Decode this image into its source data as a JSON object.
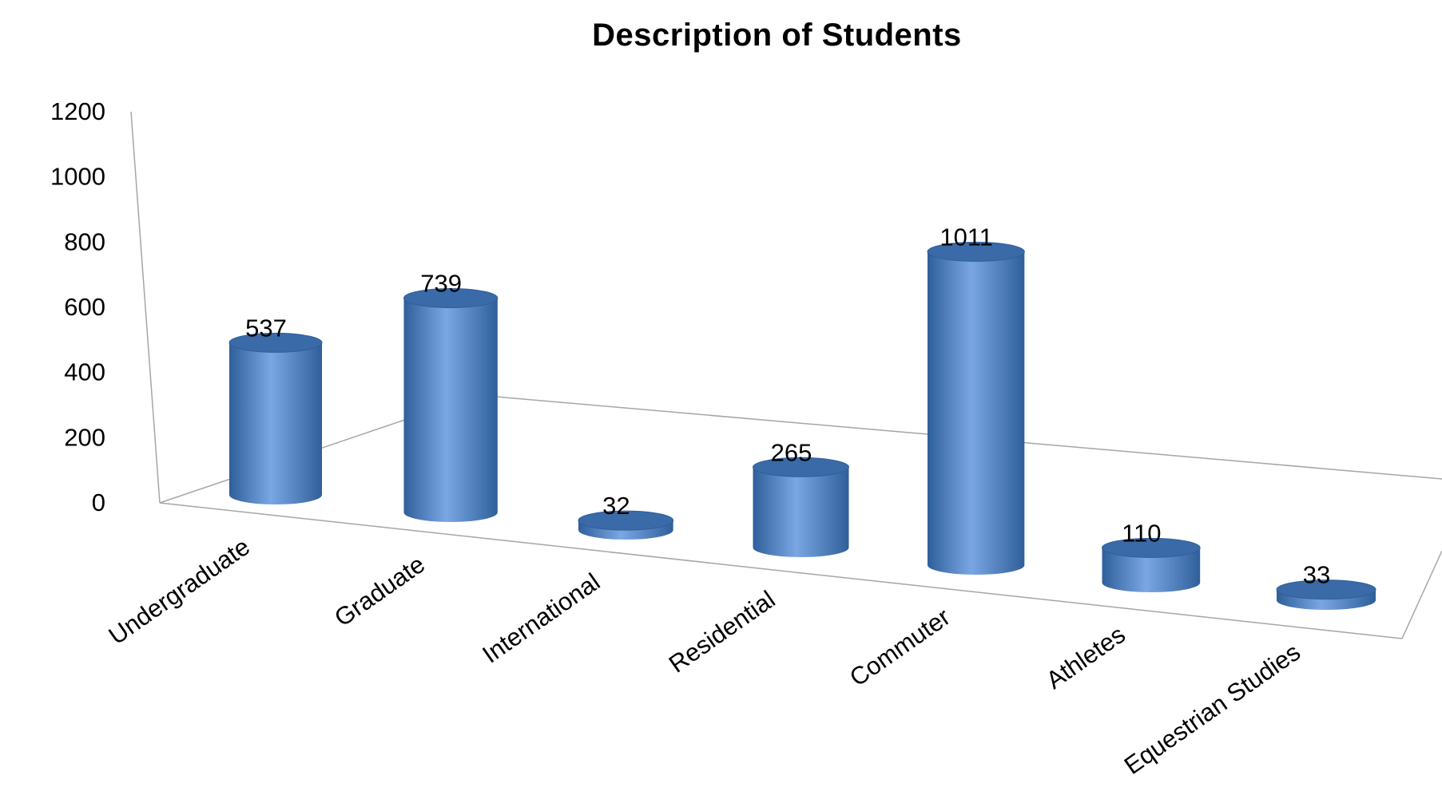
{
  "chart_data": {
    "type": "bar",
    "style": "3d-cylinder",
    "title": "Description of Students",
    "xlabel": "",
    "ylabel": "",
    "categories": [
      "Undergraduate",
      "Graduate",
      "International",
      "Residential",
      "Commuter",
      "Athletes",
      "Equestrian Studies"
    ],
    "values": [
      537,
      739,
      32,
      265,
      1011,
      110,
      33
    ],
    "ylim": [
      0,
      1200
    ],
    "yticks": [
      0,
      200,
      400,
      600,
      800,
      1000,
      1200
    ],
    "grid": false,
    "legend": "none",
    "colors": {
      "bar": "#4f81bd",
      "bar_light": "#7aa7e4",
      "bar_dark": "#2f5f9a",
      "bar_top": "#3a6aa8",
      "axis": "#a6a6a6"
    }
  }
}
